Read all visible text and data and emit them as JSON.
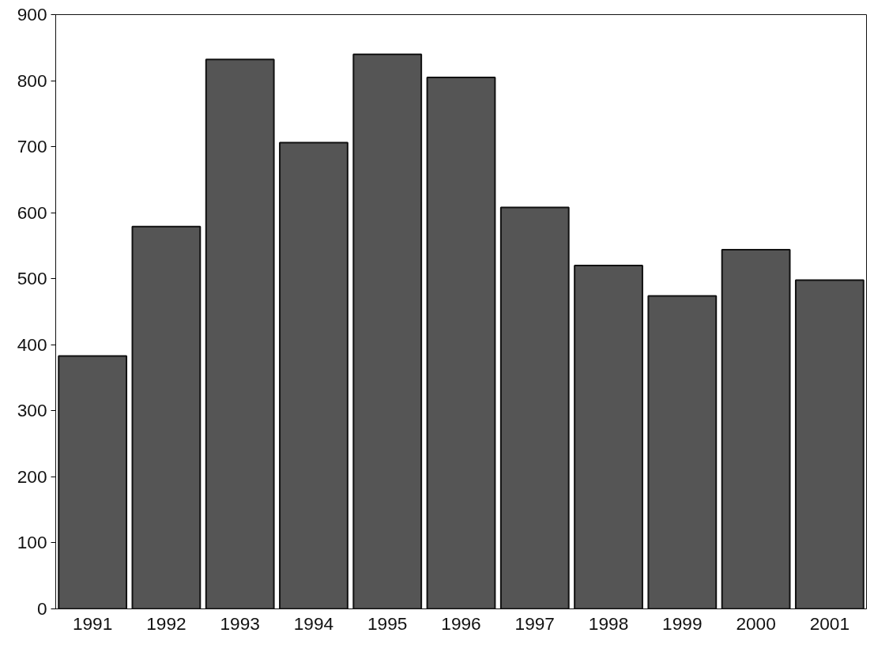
{
  "chart_data": {
    "type": "bar",
    "categories": [
      "1991",
      "1992",
      "1993",
      "1994",
      "1995",
      "1996",
      "1997",
      "1998",
      "1999",
      "2000",
      "2001"
    ],
    "values": [
      383,
      579,
      832,
      706,
      840,
      805,
      608,
      520,
      474,
      544,
      498
    ],
    "color": "#555555",
    "ylim": [
      0,
      900
    ],
    "yticks": [
      0,
      100,
      200,
      300,
      400,
      500,
      600,
      700,
      800,
      900
    ],
    "grid": false
  }
}
